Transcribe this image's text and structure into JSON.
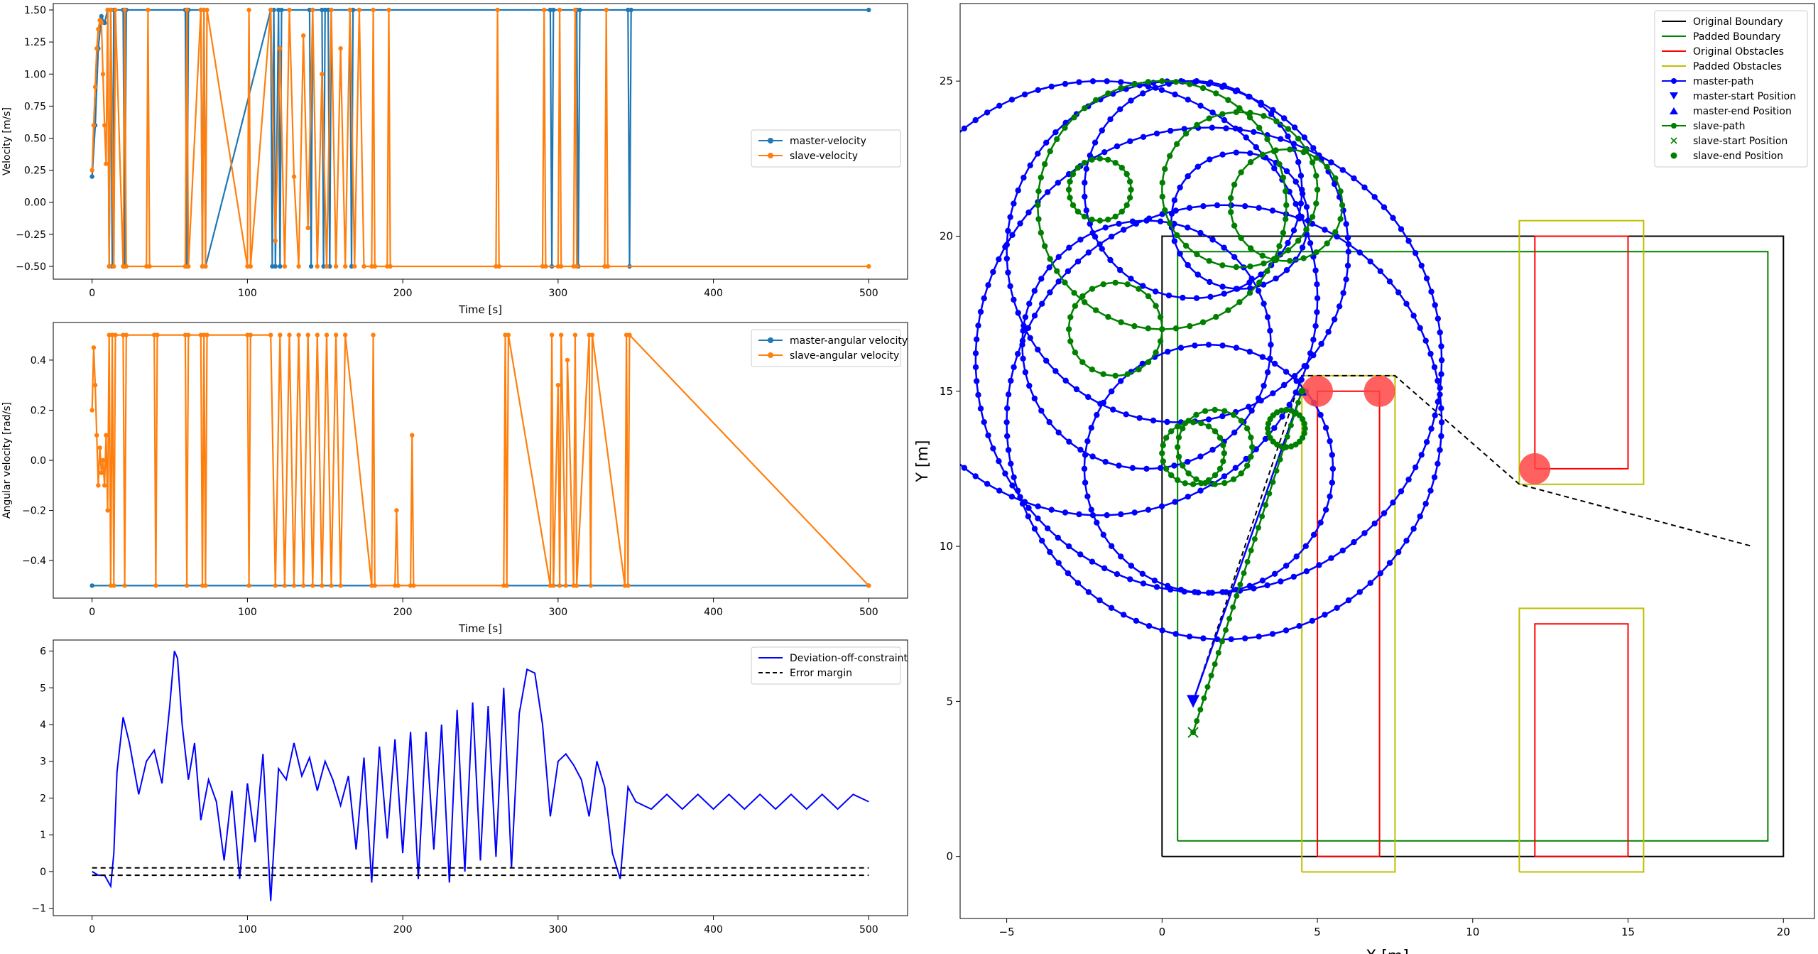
{
  "chart_data": [
    {
      "type": "line",
      "xlabel": "Time [s]",
      "ylabel": "Velocity [m/s]",
      "xlim": [
        -25,
        525
      ],
      "ylim": [
        -0.6,
        1.55
      ],
      "xticks": [
        "0",
        "100",
        "200",
        "300",
        "400",
        "500"
      ],
      "yticks": [
        "−0.50",
        "−0.25",
        "0.00",
        "0.25",
        "0.50",
        "0.75",
        "1.00",
        "1.25",
        "1.50"
      ],
      "legend_position": "center-right",
      "series": [
        {
          "name": "master-velocity",
          "color": "#1f77b4",
          "x": [
            0,
            2,
            4,
            6,
            8,
            10,
            11,
            12,
            13,
            14,
            20,
            21,
            22,
            60,
            61,
            62,
            70,
            71,
            72,
            73,
            115,
            116,
            117,
            118,
            120,
            121,
            122,
            140,
            141,
            142,
            148,
            149,
            150,
            152,
            153,
            154,
            166,
            167,
            168,
            295,
            296,
            297,
            312,
            313,
            314,
            345,
            346,
            347,
            500
          ],
          "y": [
            0.2,
            0.6,
            1.2,
            1.45,
            1.4,
            1.5,
            -0.5,
            1.5,
            -0.5,
            1.5,
            1.5,
            -0.5,
            1.5,
            1.5,
            -0.5,
            1.5,
            1.5,
            -0.5,
            1.5,
            -0.5,
            1.5,
            -0.5,
            1.5,
            -0.5,
            1.5,
            -0.5,
            1.5,
            1.5,
            -0.5,
            1.5,
            1.5,
            -0.5,
            1.5,
            1.5,
            -0.5,
            1.5,
            1.5,
            -0.5,
            1.5,
            1.5,
            -0.5,
            1.5,
            1.5,
            -0.5,
            1.5,
            1.5,
            -0.5,
            1.5,
            1.5
          ]
        },
        {
          "name": "slave-velocity",
          "color": "#ff7f0e",
          "x": [
            0,
            1,
            2,
            3,
            4,
            5,
            6,
            7,
            8,
            9,
            10,
            11,
            12,
            14,
            15,
            20,
            21,
            22,
            35,
            36,
            37,
            60,
            61,
            62,
            70,
            71,
            72,
            73,
            74,
            100,
            101,
            102,
            115,
            118,
            121,
            124,
            127,
            130,
            133,
            136,
            139,
            142,
            145,
            148,
            151,
            154,
            157,
            160,
            163,
            166,
            169,
            172,
            175,
            180,
            181,
            182,
            190,
            191,
            192,
            260,
            261,
            262,
            290,
            291,
            292,
            300,
            301,
            302,
            310,
            311,
            312,
            330,
            331,
            332,
            500
          ],
          "y": [
            0.25,
            0.6,
            0.9,
            1.2,
            1.35,
            1.42,
            1.4,
            1.0,
            0.6,
            0.3,
            1.5,
            -0.5,
            1.5,
            -0.5,
            1.5,
            -0.5,
            1.5,
            -0.5,
            -0.5,
            1.5,
            -0.5,
            -0.5,
            1.5,
            -0.5,
            1.5,
            -0.5,
            1.5,
            -0.5,
            1.5,
            -0.5,
            1.5,
            -0.5,
            1.5,
            -0.3,
            1.2,
            -0.5,
            1.5,
            0.2,
            -0.5,
            1.3,
            -0.2,
            1.5,
            -0.5,
            1.0,
            -0.5,
            1.5,
            -0.5,
            1.2,
            -0.5,
            1.5,
            -0.5,
            1.5,
            -0.5,
            -0.5,
            1.5,
            -0.5,
            -0.5,
            1.5,
            -0.5,
            -0.5,
            1.5,
            -0.5,
            -0.5,
            1.5,
            -0.5,
            -0.5,
            1.5,
            -0.5,
            -0.5,
            1.5,
            -0.5,
            -0.5,
            1.5,
            -0.5,
            -0.5
          ]
        }
      ]
    },
    {
      "type": "line",
      "xlabel": "Time [s]",
      "ylabel": "Angular velocity [rad/s]",
      "xlim": [
        -25,
        525
      ],
      "ylim": [
        -0.55,
        0.55
      ],
      "xticks": [
        "0",
        "100",
        "200",
        "300",
        "400",
        "500"
      ],
      "yticks": [
        "−0.4",
        "−0.2",
        "0.0",
        "0.2",
        "0.4"
      ],
      "legend_position": "upper-right",
      "series": [
        {
          "name": "master-angular velocity",
          "color": "#1f77b4",
          "x": [
            0,
            500
          ],
          "y": [
            -0.5,
            -0.5
          ]
        },
        {
          "name": "slave-angular velocity",
          "color": "#ff7f0e",
          "x": [
            0,
            1,
            2,
            3,
            4,
            5,
            6,
            7,
            8,
            9,
            10,
            11,
            12,
            13,
            14,
            15,
            20,
            21,
            22,
            40,
            41,
            42,
            60,
            61,
            62,
            70,
            71,
            72,
            73,
            74,
            100,
            101,
            102,
            115,
            118,
            121,
            124,
            127,
            130,
            133,
            136,
            139,
            142,
            145,
            148,
            151,
            154,
            157,
            160,
            163,
            180,
            181,
            182,
            195,
            196,
            197,
            205,
            206,
            207,
            265,
            266,
            267,
            268,
            295,
            296,
            297,
            300,
            301,
            302,
            305,
            306,
            310,
            311,
            312,
            320,
            321,
            322,
            343,
            344,
            345,
            346,
            500
          ],
          "y": [
            0.2,
            0.45,
            0.3,
            0.1,
            -0.1,
            0.05,
            -0.05,
            0.0,
            -0.1,
            0.1,
            -0.2,
            0.5,
            -0.5,
            0.5,
            -0.5,
            0.5,
            0.5,
            -0.5,
            0.5,
            0.5,
            -0.5,
            0.5,
            0.5,
            -0.5,
            0.5,
            0.5,
            -0.5,
            0.5,
            -0.5,
            0.5,
            0.5,
            -0.5,
            0.5,
            0.5,
            -0.5,
            0.5,
            -0.5,
            0.5,
            -0.5,
            0.5,
            -0.5,
            0.5,
            -0.5,
            0.5,
            -0.5,
            0.5,
            -0.5,
            0.5,
            -0.5,
            0.5,
            -0.5,
            0.5,
            -0.5,
            -0.5,
            -0.2,
            -0.5,
            -0.5,
            0.1,
            -0.5,
            -0.5,
            0.5,
            -0.5,
            0.5,
            -0.5,
            0.5,
            -0.5,
            0.3,
            -0.5,
            0.5,
            -0.5,
            0.4,
            -0.5,
            0.5,
            -0.5,
            0.5,
            -0.5,
            0.5,
            -0.5,
            0.5,
            -0.5,
            0.5,
            -0.5
          ]
        }
      ]
    },
    {
      "type": "line",
      "xlabel": "",
      "ylabel": "",
      "xlim": [
        -25,
        525
      ],
      "ylim": [
        -1.2,
        6.3
      ],
      "xticks": [
        "0",
        "100",
        "200",
        "300",
        "400",
        "500"
      ],
      "yticks": [
        "−1",
        "0",
        "1",
        "2",
        "3",
        "4",
        "5",
        "6"
      ],
      "legend_position": "upper-right",
      "series": [
        {
          "name": "Deviation-off-constraint",
          "color": "#0000ff",
          "x": [
            0,
            4,
            8,
            12,
            14,
            16,
            20,
            24,
            30,
            35,
            40,
            45,
            50,
            53,
            55,
            58,
            62,
            66,
            70,
            75,
            80,
            85,
            90,
            95,
            100,
            105,
            110,
            115,
            120,
            125,
            130,
            135,
            140,
            145,
            150,
            155,
            160,
            165,
            170,
            175,
            180,
            185,
            190,
            195,
            200,
            205,
            210,
            215,
            220,
            225,
            230,
            235,
            240,
            245,
            250,
            255,
            260,
            265,
            270,
            275,
            280,
            285,
            290,
            295,
            300,
            305,
            310,
            315,
            320,
            325,
            330,
            335,
            340,
            345,
            350,
            360,
            370,
            380,
            390,
            400,
            410,
            420,
            430,
            440,
            450,
            460,
            470,
            480,
            490,
            500
          ],
          "y": [
            0.0,
            -0.1,
            -0.1,
            -0.4,
            0.5,
            2.7,
            4.2,
            3.5,
            2.1,
            3.0,
            3.3,
            2.4,
            4.5,
            6.0,
            5.8,
            4.0,
            2.5,
            3.5,
            1.4,
            2.5,
            1.9,
            0.3,
            2.2,
            -0.2,
            2.4,
            0.8,
            3.2,
            -0.8,
            2.8,
            2.5,
            3.5,
            2.6,
            3.1,
            2.2,
            3.0,
            2.5,
            1.8,
            2.6,
            0.6,
            3.1,
            -0.3,
            3.4,
            0.9,
            3.6,
            0.5,
            3.8,
            -0.2,
            3.8,
            0.6,
            4.0,
            -0.3,
            4.4,
            0.0,
            4.6,
            0.3,
            4.5,
            0.4,
            5.0,
            0.1,
            4.3,
            5.5,
            5.4,
            4.0,
            1.5,
            3.0,
            3.2,
            2.9,
            2.5,
            1.5,
            3.0,
            2.3,
            0.5,
            -0.2,
            2.3,
            1.9,
            1.7,
            2.1,
            1.7,
            2.1,
            1.7,
            2.1,
            1.7,
            2.1,
            1.7,
            2.1,
            1.7,
            2.1,
            1.7,
            2.1,
            1.9
          ]
        },
        {
          "name": "Error margin",
          "color": "#000000",
          "dashed": true,
          "x": [
            0,
            500
          ],
          "y": [
            0.1,
            0.1
          ]
        },
        {
          "name": "",
          "color": "#000000",
          "dashed": true,
          "x": [
            0,
            500
          ],
          "y": [
            -0.1,
            -0.1
          ]
        }
      ]
    },
    {
      "type": "scatter",
      "xlabel": "X [m]",
      "ylabel": "Y [m]",
      "xlim": [
        -6.5,
        21
      ],
      "ylim": [
        -2,
        27.5
      ],
      "xticks": [
        "−5",
        "0",
        "5",
        "10",
        "15",
        "20"
      ],
      "yticks": [
        "0",
        "5",
        "10",
        "15",
        "20",
        "25"
      ],
      "legend_position": "upper-right",
      "legend": [
        "Original Boundary",
        "Padded Boundary",
        "Original Obstacles",
        "Padded Obstacles",
        "master-path",
        "master-start Position",
        "master-end Position",
        "slave-path",
        "slave-start Position",
        "slave-end Position"
      ],
      "boundaries": [
        {
          "name": "Original Boundary",
          "color": "#000000",
          "x": [
            0,
            20,
            20,
            0,
            0
          ],
          "y": [
            0,
            0,
            20,
            20,
            0
          ]
        },
        {
          "name": "Padded Boundary",
          "color": "#008000",
          "x": [
            0.5,
            19.5,
            19.5,
            0.5,
            0.5
          ],
          "y": [
            0.5,
            0.5,
            19.5,
            19.5,
            0.5
          ]
        }
      ],
      "obstacles_original": [
        {
          "x": [
            5,
            7,
            7,
            5,
            5
          ],
          "y": [
            0,
            0,
            15,
            15,
            0
          ]
        },
        {
          "x": [
            12,
            15,
            15,
            12,
            12
          ],
          "y": [
            12.5,
            12.5,
            20,
            20,
            12.5
          ]
        },
        {
          "x": [
            12,
            15,
            15,
            12,
            12
          ],
          "y": [
            0,
            0,
            7.5,
            7.5,
            0
          ]
        }
      ],
      "obstacles_padded": [
        {
          "x": [
            4.5,
            7.5,
            7.5,
            4.5,
            4.5
          ],
          "y": [
            -0.5,
            -0.5,
            15.5,
            15.5,
            -0.5
          ]
        },
        {
          "x": [
            11.5,
            15.5,
            15.5,
            11.5,
            11.5
          ],
          "y": [
            12,
            12,
            20.5,
            20.5,
            12
          ]
        },
        {
          "x": [
            11.5,
            15.5,
            15.5,
            11.5,
            11.5
          ],
          "y": [
            -0.5,
            -0.5,
            8,
            8,
            -0.5
          ]
        }
      ],
      "dashed_path": {
        "x": [
          1,
          4.5,
          7.5,
          11.5,
          19
        ],
        "y": [
          5,
          15.5,
          15.5,
          12,
          10
        ]
      },
      "waypoints": {
        "color": "#ff4444",
        "x": [
          5,
          7,
          12
        ],
        "y": [
          15,
          15,
          12.5
        ]
      },
      "master_circles": [
        {
          "cx": -2.0,
          "cy": 18.0,
          "r": 7.0
        },
        {
          "cx": 1.5,
          "cy": 16.0,
          "r": 7.5
        },
        {
          "cx": 2.0,
          "cy": 14.0,
          "r": 7.0
        },
        {
          "cx": 0.5,
          "cy": 19.5,
          "r": 5.5
        },
        {
          "cx": 1.0,
          "cy": 21.5,
          "r": 3.5
        },
        {
          "cx": 2.5,
          "cy": 20.5,
          "r": 2.2
        },
        {
          "cx": -0.5,
          "cy": 16.5,
          "r": 4.0
        },
        {
          "cx": 1.5,
          "cy": 12.5,
          "r": 4.0
        }
      ],
      "master_start": {
        "x": 1.0,
        "y": 5.0
      },
      "master_end": {
        "x": 4.5,
        "y": 15.0
      },
      "slave_circles": [
        {
          "cx": 0.0,
          "cy": 21.0,
          "r": 4.0
        },
        {
          "cx": 2.5,
          "cy": 21.5,
          "r": 2.5
        },
        {
          "cx": 4.0,
          "cy": 21.0,
          "r": 1.8
        },
        {
          "cx": -1.5,
          "cy": 17.0,
          "r": 1.5
        },
        {
          "cx": -2.0,
          "cy": 21.5,
          "r": 1.0
        },
        {
          "cx": 1.0,
          "cy": 13.0,
          "r": 1.0
        },
        {
          "cx": 1.7,
          "cy": 13.2,
          "r": 1.2
        },
        {
          "cx": 4.0,
          "cy": 13.8,
          "r": 0.6
        }
      ],
      "slave_start": {
        "x": 1.0,
        "y": 4.0
      },
      "slave_end": {
        "x": 4.5,
        "y": 15.0
      }
    }
  ]
}
